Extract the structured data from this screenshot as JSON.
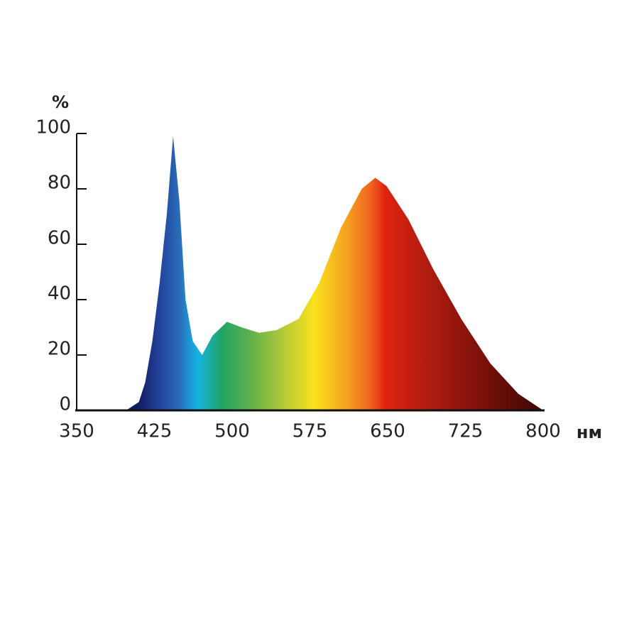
{
  "chart_data": {
    "type": "area",
    "y_label": "%",
    "x_label": "нм",
    "x": [
      350,
      380,
      399,
      410,
      416,
      423,
      430,
      437,
      443,
      449,
      455,
      462,
      471,
      481,
      495,
      509,
      526,
      543,
      564,
      584,
      605,
      625,
      638,
      649,
      670,
      694,
      721,
      749,
      776,
      800
    ],
    "values": [
      0,
      0,
      0.3,
      3,
      10,
      25,
      46,
      71,
      99,
      76,
      40,
      25,
      20,
      27,
      32,
      30,
      28,
      29,
      33,
      46,
      66,
      80,
      84,
      81,
      69,
      51,
      33,
      17,
      6,
      0
    ],
    "xlim": [
      350,
      800
    ],
    "xticks": [
      350,
      425,
      500,
      575,
      650,
      725,
      800
    ],
    "ylim": [
      0,
      100
    ],
    "yticks": [
      0,
      20,
      40,
      60,
      80,
      100
    ]
  }
}
